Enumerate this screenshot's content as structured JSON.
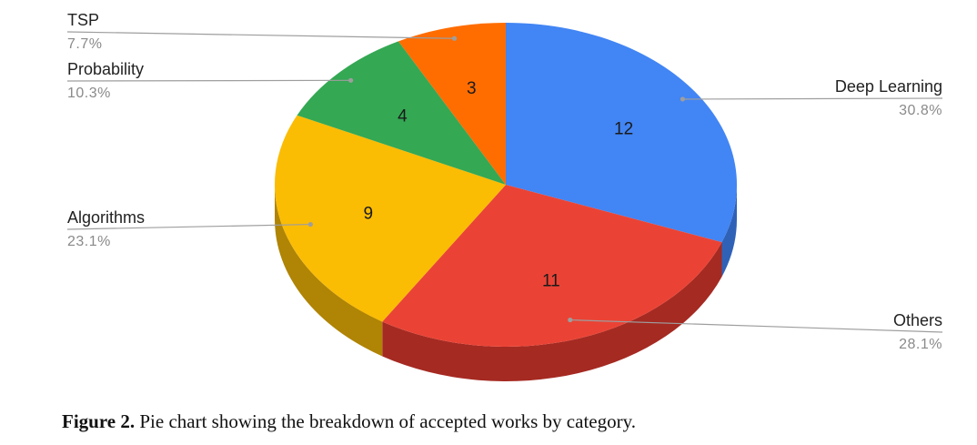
{
  "caption": {
    "label": "Figure 2.",
    "text": "Pie chart showing the breakdown of accepted works by category."
  },
  "chart_data": {
    "type": "pie",
    "style": "3d",
    "title": "",
    "start_angle_deg": 0,
    "direction": "clockwise",
    "slices": [
      {
        "key": "deep-learning",
        "label": "Deep Learning",
        "value": 12,
        "percent": "30.8%",
        "color": "#4285f4",
        "side_color": "#2f62b7"
      },
      {
        "key": "others",
        "label": "Others",
        "value": 11,
        "percent": "28.1%",
        "color": "#ea4335",
        "side_color": "#a52a22"
      },
      {
        "key": "algorithms",
        "label": "Algorithms",
        "value": 9,
        "percent": "23.1%",
        "color": "#fbbc04",
        "side_color": "#b08404"
      },
      {
        "key": "probability",
        "label": "Probability",
        "value": 4,
        "percent": "10.3%",
        "color": "#34a853",
        "side_color": "#247538"
      },
      {
        "key": "tsp",
        "label": "TSP",
        "value": 3,
        "percent": "7.7%",
        "color": "#ff6d01",
        "side_color": "#b34c00"
      }
    ]
  }
}
